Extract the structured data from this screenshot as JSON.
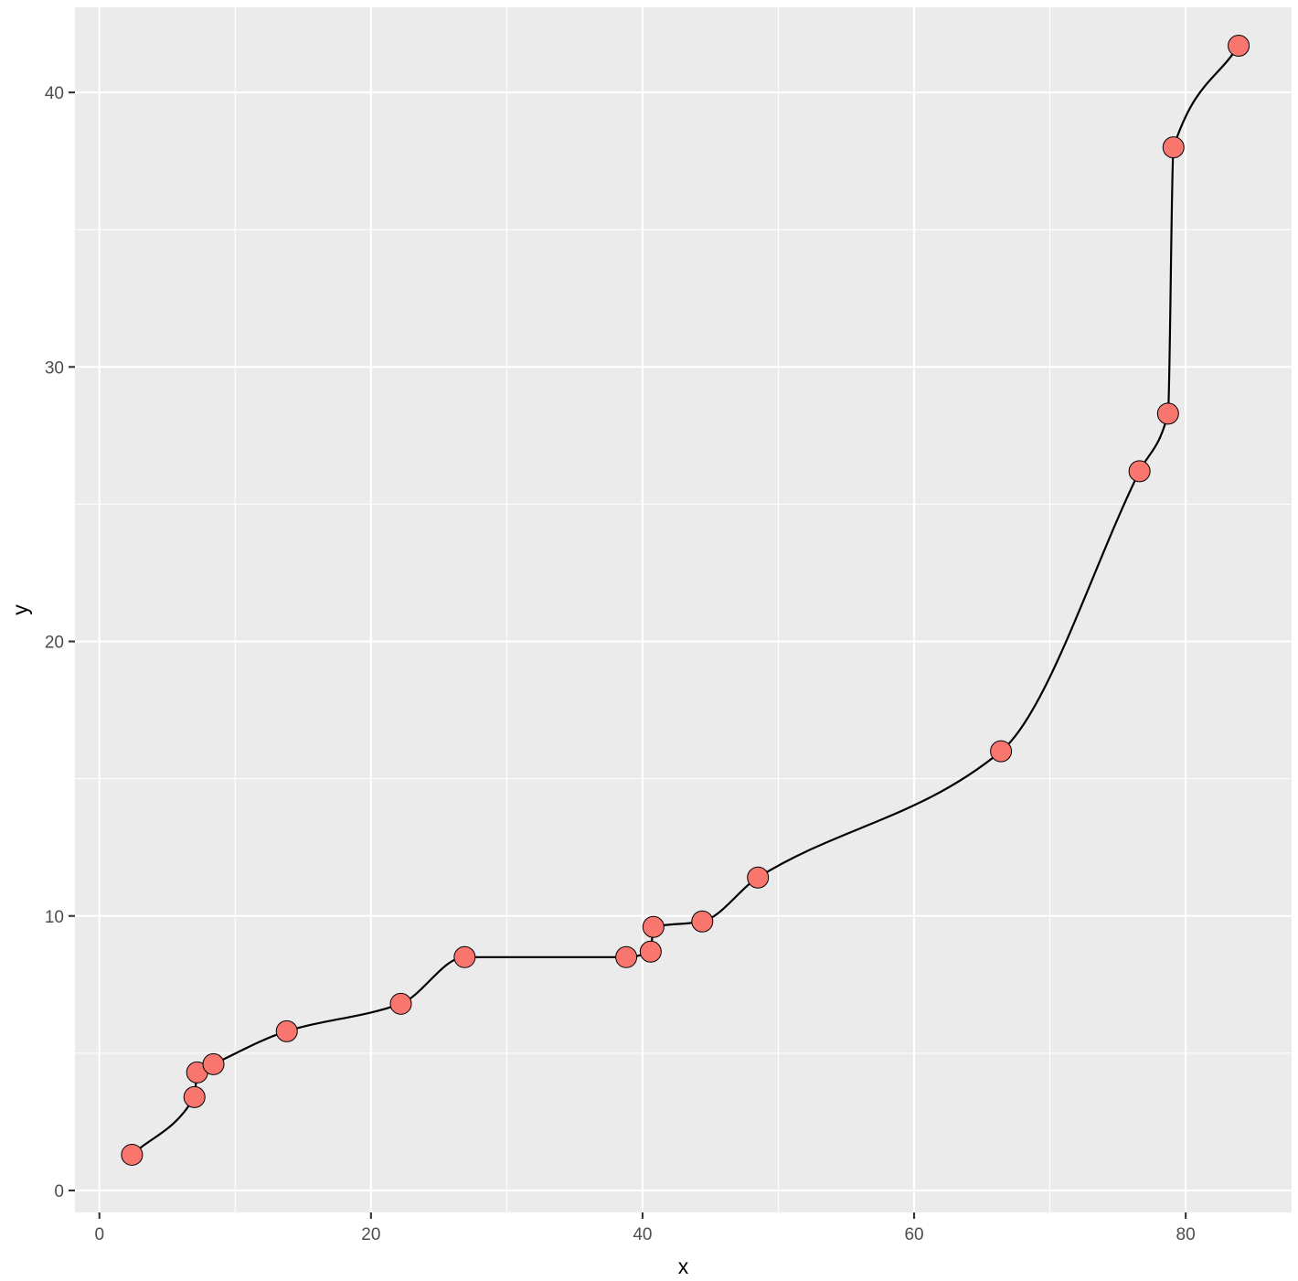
{
  "chart_data": {
    "type": "scatter",
    "title": "",
    "xlabel": "x",
    "ylabel": "y",
    "xlim": [
      -1.8,
      87.8
    ],
    "ylim": [
      -0.8,
      43.1
    ],
    "x_ticks": [
      0,
      20,
      40,
      60,
      80
    ],
    "y_ticks": [
      0,
      10,
      20,
      30,
      40
    ],
    "x_tick_labels": [
      "0",
      "20",
      "40",
      "60",
      "80"
    ],
    "y_tick_labels": [
      "0",
      "10",
      "20",
      "30",
      "40"
    ],
    "grid": true,
    "legend": "none",
    "series": [
      {
        "points": [
          {
            "x": 2.4,
            "y": 1.3
          },
          {
            "x": 7.0,
            "y": 3.4
          },
          {
            "x": 7.2,
            "y": 4.3
          },
          {
            "x": 8.4,
            "y": 4.6
          },
          {
            "x": 13.8,
            "y": 5.8
          },
          {
            "x": 22.2,
            "y": 6.8
          },
          {
            "x": 26.9,
            "y": 8.5
          },
          {
            "x": 38.8,
            "y": 8.5
          },
          {
            "x": 40.6,
            "y": 8.7
          },
          {
            "x": 40.8,
            "y": 9.6
          },
          {
            "x": 44.4,
            "y": 9.8
          },
          {
            "x": 48.5,
            "y": 11.4
          },
          {
            "x": 66.4,
            "y": 16.0
          },
          {
            "x": 76.6,
            "y": 26.2
          },
          {
            "x": 78.7,
            "y": 28.3
          },
          {
            "x": 79.1,
            "y": 38.0
          },
          {
            "x": 83.9,
            "y": 41.7
          }
        ]
      }
    ],
    "point_color": "#F8766D",
    "line_color": "#000000",
    "panel_background": "#EBEBEB",
    "grid_color": "#FFFFFF"
  }
}
